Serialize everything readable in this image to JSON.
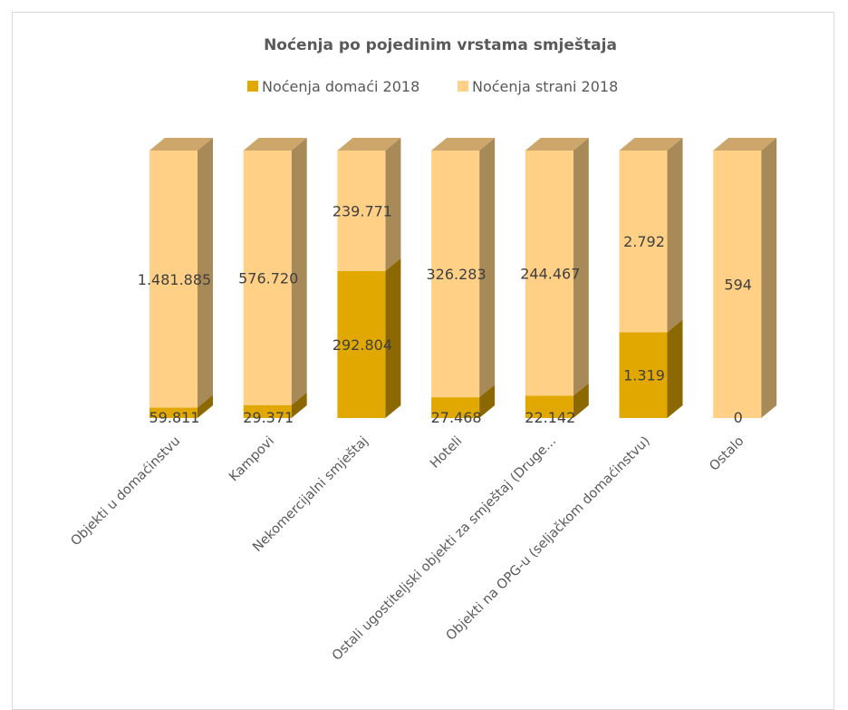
{
  "chart_data": {
    "type": "bar",
    "stacked": true,
    "three_d": true,
    "title": "Noćenja po pojedinim vrstama smještaja",
    "legend_position": "top",
    "categories": [
      "Objekti u domaćinstvu",
      "Kampovi",
      "Nekomercijalni smještaj",
      "Hoteli",
      "Ostali ugostiteljski objekti za smještaj (Druge...",
      "Objekti na OPG-u (seljačkom domaćinstvu)",
      "Ostalo"
    ],
    "series": [
      {
        "name": "Noćenja domaći 2018",
        "color": "#e0a800",
        "values": [
          59811,
          29371,
          292804,
          27468,
          22142,
          1319,
          0
        ],
        "labels": [
          "59.811",
          "29.371",
          "292.804",
          "27.468",
          "22.142",
          "1.319",
          "0"
        ]
      },
      {
        "name": "Noćenja strani 2018",
        "color": "#ffd085",
        "values": [
          1481885,
          576720,
          239771,
          326283,
          244467,
          2792,
          594
        ],
        "labels": [
          "1.481.885",
          "576.720",
          "239.771",
          "326.283",
          "244.467",
          "2.792",
          "594"
        ]
      }
    ],
    "normalized": true,
    "grid": false
  }
}
